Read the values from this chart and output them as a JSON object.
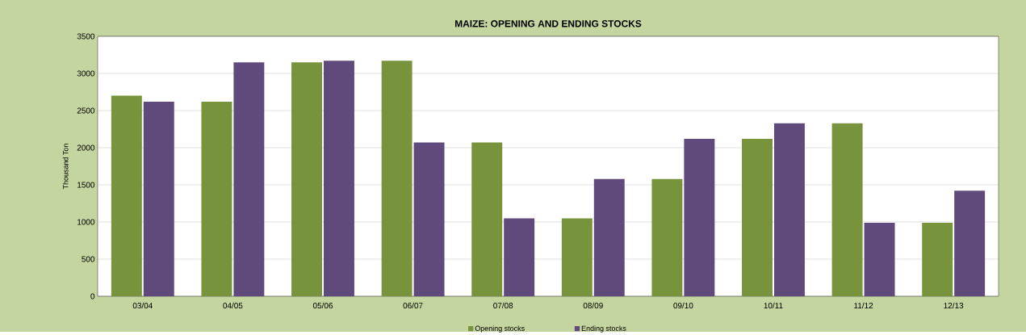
{
  "chart_data": {
    "type": "bar",
    "title": "MAIZE: OPENING AND ENDING STOCKS",
    "ylabel": "Thousand Ton",
    "categories": [
      "03/04",
      "04/05",
      "05/06",
      "06/07",
      "07/08",
      "08/09",
      "09/10",
      "10/11",
      "11/12",
      "12/13"
    ],
    "series": [
      {
        "name": "Opening stocks",
        "color": "#77933c",
        "values": [
          2700,
          2620,
          3150,
          3170,
          2070,
          1050,
          1580,
          2120,
          2330,
          990
        ]
      },
      {
        "name": "Ending stocks",
        "color": "#604a7b",
        "values": [
          2620,
          3150,
          3170,
          2070,
          1050,
          1580,
          2120,
          2330,
          990,
          1420
        ]
      }
    ],
    "ylim": [
      0,
      3500
    ],
    "yticks": [
      0,
      500,
      1000,
      1500,
      2000,
      2500,
      3000,
      3500
    ],
    "grid": "y",
    "legend": "bottom"
  }
}
